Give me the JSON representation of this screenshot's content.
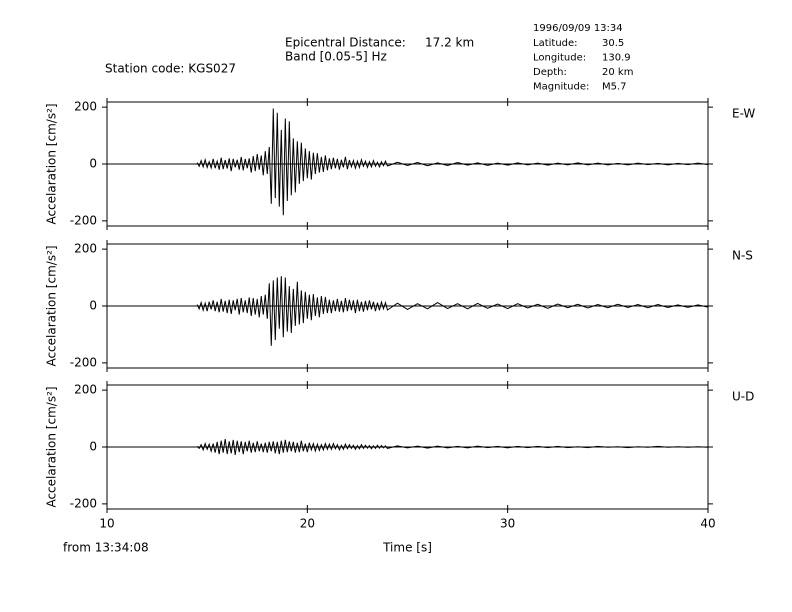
{
  "header": {
    "station": "Station code: KGS027",
    "distance_label": "Epicentral Distance:",
    "distance_value": "17.2 km",
    "band": "Band [0.05-5] Hz",
    "datetime": "1996/09/09 13:34",
    "info": [
      [
        "Latitude:",
        "30.5"
      ],
      [
        "Longitude:",
        "130.9"
      ],
      [
        "Depth:",
        "20 km"
      ],
      [
        "Magnitude:",
        "M5.7"
      ]
    ]
  },
  "footer": {
    "start": "from 13:34:08"
  },
  "chart_data": [
    {
      "type": "line",
      "ylabel": "Accelaration [cm/s²]",
      "xlim": [
        10,
        40
      ],
      "xticks": [
        10,
        20,
        30,
        40
      ],
      "ylim": [
        -218,
        218
      ],
      "yticks": [
        -200,
        0,
        200
      ],
      "series": [
        {
          "name": "E-W",
          "color": "#000000",
          "x": [
            14.5,
            14.6,
            14.7,
            14.8,
            14.9,
            15,
            15.1,
            15.2,
            15.3,
            15.4,
            15.5,
            15.6,
            15.7,
            15.8,
            15.9,
            16,
            16.1,
            16.2,
            16.3,
            16.4,
            16.5,
            16.6,
            16.7,
            16.8,
            16.9,
            17,
            17.1,
            17.2,
            17.3,
            17.4,
            17.5,
            17.6,
            17.7,
            17.8,
            17.9,
            18,
            18.1,
            18.2,
            18.3,
            18.4,
            18.5,
            18.6,
            18.7,
            18.8,
            18.9,
            19,
            19.1,
            19.2,
            19.3,
            19.4,
            19.5,
            19.6,
            19.7,
            19.8,
            19.9,
            20,
            20.1,
            20.2,
            20.3,
            20.4,
            20.5,
            20.6,
            20.7,
            20.8,
            20.9,
            21,
            21.1,
            21.2,
            21.3,
            21.4,
            21.5,
            21.6,
            21.7,
            21.8,
            21.9,
            22,
            22.1,
            22.2,
            22.3,
            22.4,
            22.5,
            22.6,
            22.7,
            22.8,
            22.9,
            23,
            23.1,
            23.2,
            23.3,
            23.4,
            23.5,
            23.6,
            23.7,
            23.8,
            23.9,
            24,
            24.5,
            25,
            25.5,
            26,
            26.5,
            27,
            27.5,
            28,
            28.5,
            29,
            29.5,
            30,
            30.5,
            31,
            31.5,
            32,
            32.5,
            33,
            33.5,
            34,
            34.5,
            35,
            35.5,
            36,
            36.5,
            37,
            37.5,
            38,
            38.5,
            39,
            39.5,
            40
          ],
          "values": [
            5,
            -8,
            12,
            -10,
            15,
            -12,
            8,
            -14,
            18,
            -15,
            10,
            -20,
            22,
            -18,
            14,
            -16,
            20,
            -25,
            18,
            -12,
            15,
            -20,
            25,
            -22,
            18,
            -15,
            20,
            -30,
            28,
            -25,
            35,
            -20,
            30,
            -40,
            45,
            -35,
            60,
            -140,
            195,
            -120,
            180,
            -150,
            120,
            -180,
            160,
            -130,
            150,
            -110,
            90,
            -100,
            80,
            -70,
            75,
            -60,
            55,
            -50,
            45,
            -55,
            40,
            -35,
            38,
            -30,
            25,
            -28,
            30,
            -22,
            20,
            -18,
            22,
            -15,
            18,
            -20,
            15,
            -12,
            25,
            -18,
            14,
            -10,
            12,
            -15,
            10,
            -12,
            15,
            -8,
            10,
            -12,
            8,
            -10,
            12,
            -8,
            6,
            -10,
            8,
            -6,
            10,
            -7,
            6,
            -5,
            5,
            -6,
            4,
            -5,
            5,
            -4,
            4,
            -5,
            3,
            -4,
            4,
            -3,
            3,
            -4,
            3,
            -3,
            4,
            -3,
            3,
            -3,
            2,
            -3,
            3,
            -2,
            2,
            -3,
            2,
            -2,
            3,
            -2
          ]
        }
      ]
    },
    {
      "type": "line",
      "ylabel": "Accelaration [cm/s²]",
      "xlim": [
        10,
        40
      ],
      "xticks": [
        10,
        20,
        30,
        40
      ],
      "ylim": [
        -218,
        218
      ],
      "yticks": [
        -200,
        0,
        200
      ],
      "series": [
        {
          "name": "N-S",
          "color": "#000000",
          "x": [
            14.5,
            14.6,
            14.7,
            14.8,
            14.9,
            15,
            15.1,
            15.2,
            15.3,
            15.4,
            15.5,
            15.6,
            15.7,
            15.8,
            15.9,
            16,
            16.1,
            16.2,
            16.3,
            16.4,
            16.5,
            16.6,
            16.7,
            16.8,
            16.9,
            17,
            17.1,
            17.2,
            17.3,
            17.4,
            17.5,
            17.6,
            17.7,
            17.8,
            17.9,
            18,
            18.1,
            18.2,
            18.3,
            18.4,
            18.5,
            18.6,
            18.7,
            18.8,
            18.9,
            19,
            19.1,
            19.2,
            19.3,
            19.4,
            19.5,
            19.6,
            19.7,
            19.8,
            19.9,
            20,
            20.1,
            20.2,
            20.3,
            20.4,
            20.5,
            20.6,
            20.7,
            20.8,
            20.9,
            21,
            21.1,
            21.2,
            21.3,
            21.4,
            21.5,
            21.6,
            21.7,
            21.8,
            21.9,
            22,
            22.1,
            22.2,
            22.3,
            22.4,
            22.5,
            22.6,
            22.7,
            22.8,
            22.9,
            23,
            23.1,
            23.2,
            23.3,
            23.4,
            23.5,
            23.6,
            23.7,
            23.8,
            23.9,
            24,
            24.5,
            25,
            25.5,
            26,
            26.5,
            27,
            27.5,
            28,
            28.5,
            29,
            29.5,
            30,
            30.5,
            31,
            31.5,
            32,
            32.5,
            33,
            33.5,
            34,
            34.5,
            35,
            35.5,
            36,
            36.5,
            37,
            37.5,
            38,
            38.5,
            39,
            39.5,
            40
          ],
          "values": [
            5,
            -10,
            12,
            -15,
            10,
            -18,
            15,
            -12,
            20,
            -18,
            15,
            -22,
            25,
            -20,
            18,
            -25,
            22,
            -28,
            20,
            -15,
            25,
            -30,
            28,
            -22,
            20,
            -25,
            30,
            -35,
            28,
            -30,
            25,
            -40,
            35,
            -30,
            40,
            -45,
            80,
            -140,
            90,
            -120,
            100,
            -80,
            105,
            -110,
            100,
            -90,
            70,
            -95,
            60,
            -70,
            85,
            -65,
            55,
            -60,
            50,
            -45,
            40,
            -50,
            42,
            -35,
            30,
            -40,
            35,
            -28,
            32,
            -25,
            22,
            -25,
            20,
            -18,
            25,
            -20,
            18,
            -22,
            28,
            -18,
            22,
            -15,
            20,
            -25,
            22,
            -18,
            15,
            -20,
            18,
            -15,
            20,
            -12,
            15,
            -18,
            12,
            -15,
            14,
            -10,
            12,
            -14,
            10,
            -12,
            8,
            -10,
            12,
            -9,
            8,
            -10,
            9,
            -8,
            7,
            -9,
            8,
            -7,
            6,
            -8,
            7,
            -6,
            6,
            -7,
            5,
            -6,
            6,
            -5,
            5,
            -6,
            5,
            -5,
            4,
            -5,
            4,
            -4
          ]
        }
      ]
    },
    {
      "type": "line",
      "ylabel": "Accelaration [cm/s²]",
      "xlabel": "Time [s]",
      "xlim": [
        10,
        40
      ],
      "xticks": [
        10,
        20,
        30,
        40
      ],
      "ylim": [
        -218,
        218
      ],
      "yticks": [
        -200,
        0,
        200
      ],
      "series": [
        {
          "name": "U-D",
          "color": "#000000",
          "x": [
            14.5,
            14.6,
            14.7,
            14.8,
            14.9,
            15,
            15.1,
            15.2,
            15.3,
            15.4,
            15.5,
            15.6,
            15.7,
            15.8,
            15.9,
            16,
            16.1,
            16.2,
            16.3,
            16.4,
            16.5,
            16.6,
            16.7,
            16.8,
            16.9,
            17,
            17.1,
            17.2,
            17.3,
            17.4,
            17.5,
            17.6,
            17.7,
            17.8,
            17.9,
            18,
            18.1,
            18.2,
            18.3,
            18.4,
            18.5,
            18.6,
            18.7,
            18.8,
            18.9,
            19,
            19.1,
            19.2,
            19.3,
            19.4,
            19.5,
            19.6,
            19.7,
            19.8,
            19.9,
            20,
            20.1,
            20.2,
            20.3,
            20.4,
            20.5,
            20.6,
            20.7,
            20.8,
            20.9,
            21,
            21.1,
            21.2,
            21.3,
            21.4,
            21.5,
            21.6,
            21.7,
            21.8,
            21.9,
            22,
            22.1,
            22.2,
            22.3,
            22.4,
            22.5,
            22.6,
            22.7,
            22.8,
            22.9,
            23,
            23.1,
            23.2,
            23.3,
            23.4,
            23.5,
            23.6,
            23.7,
            23.8,
            23.9,
            24,
            24.5,
            25,
            25.5,
            26,
            26.5,
            27,
            27.5,
            28,
            28.5,
            29,
            29.5,
            30,
            30.5,
            31,
            31.5,
            32,
            32.5,
            33,
            33.5,
            34,
            34.5,
            35,
            35.5,
            36,
            36.5,
            37,
            37.5,
            38,
            38.5,
            39,
            39.5,
            40
          ],
          "values": [
            3,
            -5,
            8,
            -10,
            12,
            -8,
            10,
            -15,
            12,
            -20,
            18,
            -25,
            22,
            -20,
            28,
            -25,
            20,
            -22,
            25,
            -28,
            22,
            -18,
            20,
            -25,
            18,
            -15,
            22,
            -20,
            15,
            -18,
            20,
            -15,
            12,
            -18,
            15,
            -20,
            18,
            -15,
            20,
            -22,
            18,
            -25,
            22,
            -20,
            25,
            -18,
            20,
            -15,
            18,
            -20,
            15,
            -18,
            22,
            -15,
            12,
            -18,
            15,
            -10,
            12,
            -14,
            10,
            -12,
            8,
            -10,
            12,
            -8,
            10,
            -8,
            12,
            -6,
            8,
            -10,
            6,
            -8,
            10,
            -6,
            8,
            -5,
            6,
            -8,
            5,
            -6,
            8,
            -5,
            6,
            -4,
            5,
            -6,
            4,
            -5,
            6,
            -4,
            5,
            -3,
            4,
            -5,
            4,
            -3,
            3,
            -4,
            3,
            -3,
            2,
            -3,
            3,
            -2,
            2,
            -3,
            2,
            -2,
            2,
            -2,
            2,
            -2,
            1,
            -2,
            2,
            -1,
            1,
            -2,
            1,
            -1,
            2,
            -1,
            1,
            -1,
            1,
            -1
          ]
        }
      ]
    }
  ]
}
